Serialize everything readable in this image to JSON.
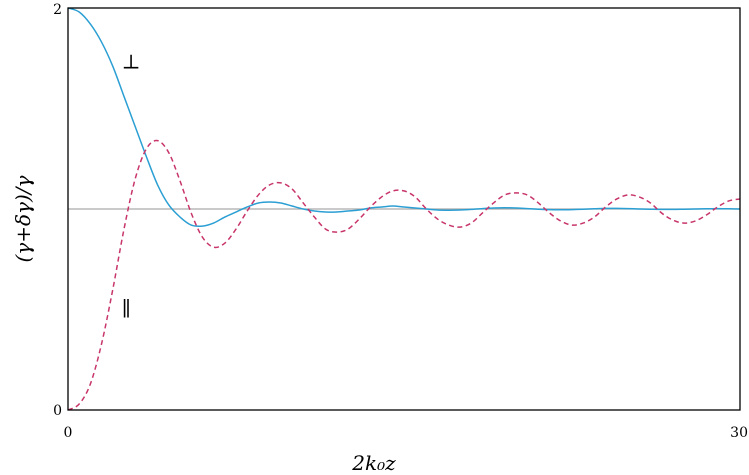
{
  "chart_data": {
    "type": "line",
    "xlabel": "2k₀z",
    "ylabel": "(γ+δγ)/γ",
    "xlim": [
      0,
      30
    ],
    "ylim": [
      0,
      2
    ],
    "x_ticks": [
      "0",
      "30"
    ],
    "y_ticks": [
      "0",
      "2"
    ],
    "grid": false,
    "legend": "none",
    "reference_line": {
      "y": 1,
      "color": "#aaaaaa"
    },
    "series": [
      {
        "name": "⊥",
        "color": "#2b9fd3",
        "style": "solid",
        "x": [
          0,
          0.5,
          1,
          1.5,
          2,
          2.5,
          3,
          3.5,
          4,
          4.5,
          5,
          5.5,
          6,
          6.5,
          7,
          7.5,
          8,
          8.5,
          9,
          9.5,
          10,
          10.5,
          11,
          11.5,
          12,
          12.5,
          13,
          13.5,
          14,
          14.5,
          15,
          15.5,
          16,
          16.5,
          17,
          17.5,
          18,
          18.5,
          19,
          19.5,
          20,
          20.5,
          21,
          21.5,
          22,
          22.5,
          23,
          23.5,
          24,
          24.5,
          25,
          25.5,
          26,
          26.5,
          27,
          27.5,
          28,
          28.5,
          29,
          29.5,
          30
        ],
        "values": [
          2.0,
          1.98,
          1.92,
          1.83,
          1.71,
          1.56,
          1.41,
          1.26,
          1.12,
          1.02,
          0.96,
          0.92,
          0.915,
          0.93,
          0.96,
          0.985,
          1.01,
          1.03,
          1.035,
          1.03,
          1.015,
          1.0,
          0.99,
          0.985,
          0.985,
          0.99,
          0.995,
          1.005,
          1.01,
          1.015,
          1.01,
          1.005,
          1.0,
          0.995,
          0.994,
          0.995,
          0.998,
          1.002,
          1.005,
          1.006,
          1.005,
          1.002,
          0.999,
          0.997,
          0.996,
          0.997,
          0.999,
          1.001,
          1.003,
          1.003,
          1.002,
          1.0,
          0.999,
          0.998,
          0.998,
          0.999,
          1.0,
          1.001,
          1.002,
          1.001,
          1.0
        ]
      },
      {
        "name": "∥",
        "color": "#c8356a",
        "style": "dashed",
        "x": [
          0,
          0.5,
          1,
          1.5,
          2,
          2.5,
          3,
          3.5,
          4,
          4.5,
          5,
          5.5,
          6,
          6.5,
          7,
          7.5,
          8,
          8.5,
          9,
          9.5,
          10,
          10.5,
          11,
          11.5,
          12,
          12.5,
          13,
          13.5,
          14,
          14.5,
          15,
          15.5,
          16,
          16.5,
          17,
          17.5,
          18,
          18.5,
          19,
          19.5,
          20,
          20.5,
          21,
          21.5,
          22,
          22.5,
          23,
          23.5,
          24,
          24.5,
          25,
          25.5,
          26,
          26.5,
          27,
          27.5,
          28,
          28.5,
          29,
          29.5,
          30
        ],
        "values": [
          0.0,
          0.03,
          0.13,
          0.33,
          0.6,
          0.9,
          1.15,
          1.3,
          1.34,
          1.28,
          1.14,
          0.98,
          0.86,
          0.81,
          0.83,
          0.9,
          0.99,
          1.07,
          1.12,
          1.13,
          1.1,
          1.03,
          0.96,
          0.9,
          0.885,
          0.9,
          0.95,
          1.01,
          1.06,
          1.09,
          1.09,
          1.06,
          1.0,
          0.95,
          0.92,
          0.91,
          0.93,
          0.98,
          1.03,
          1.07,
          1.08,
          1.07,
          1.03,
          0.98,
          0.94,
          0.92,
          0.93,
          0.96,
          1.01,
          1.05,
          1.07,
          1.06,
          1.03,
          0.98,
          0.945,
          0.93,
          0.94,
          0.97,
          1.01,
          1.04,
          1.05
        ]
      }
    ]
  }
}
